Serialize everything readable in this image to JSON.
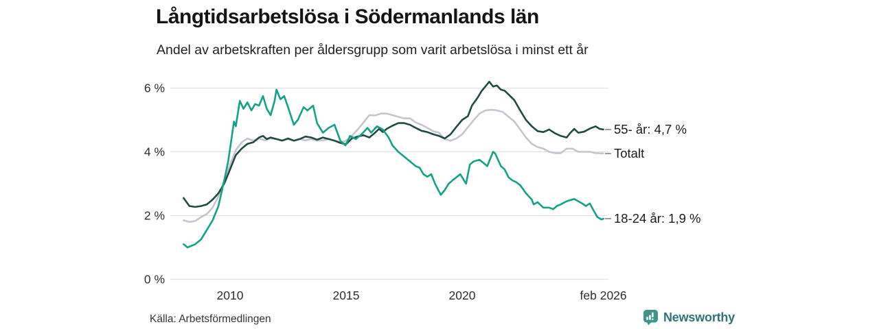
{
  "header": {
    "title": "Långtidsarbetslösa i Södermanlands län",
    "subtitle": "Andel av arbetskraften per åldersgrupp som varit arbetslösa i minst ett år"
  },
  "footer": {
    "source": "Källa: Arbetsförmedlingen",
    "brand": "Newsworthy"
  },
  "colors": {
    "grid": "#e2e2e6",
    "tick_text": "#2e2e2e",
    "annotation_text": "#1a1a1a",
    "connector_dash": "#9a9aa0",
    "brand_icon": "#3f948b",
    "brand_text": "#2e7478",
    "series_55": "#1f4a42",
    "series_total": "#c6c4ce",
    "series_18_24": "#12a189"
  },
  "chart_data": {
    "type": "line",
    "title": "Långtidsarbetslösa i Södermanlands län",
    "subtitle": "Andel av arbetskraften per åldersgrupp som varit arbetslösa i minst ett år",
    "unit": "% av arbetskraften",
    "grid": "horizontal",
    "legend_position": "right-end-labels",
    "x_axis": {
      "range": [
        2008.0,
        2026.083
      ],
      "ticks": [
        {
          "label": "2010",
          "x": 2010
        },
        {
          "label": "2015",
          "x": 2015
        },
        {
          "label": "2020",
          "x": 2020
        },
        {
          "label": "feb 2026",
          "x": 2026.083
        }
      ]
    },
    "y_axis": {
      "range": [
        0,
        6.6
      ],
      "ticks": [
        {
          "label": "0 %",
          "v": 0
        },
        {
          "label": "2 %",
          "v": 2
        },
        {
          "label": "4 %",
          "v": 4
        },
        {
          "label": "6 %",
          "v": 6
        }
      ]
    },
    "series": [
      {
        "name": "55- år",
        "end_label": "55- år: 4,7 %",
        "end_value": 4.7,
        "color": "#1f4a42",
        "draw_order": 2,
        "points": [
          [
            2008.0,
            2.55
          ],
          [
            2008.25,
            2.3
          ],
          [
            2008.5,
            2.27
          ],
          [
            2008.75,
            2.3
          ],
          [
            2009.0,
            2.35
          ],
          [
            2009.25,
            2.5
          ],
          [
            2009.5,
            2.7
          ],
          [
            2009.75,
            3.0
          ],
          [
            2010.0,
            3.45
          ],
          [
            2010.25,
            3.9
          ],
          [
            2010.5,
            4.1
          ],
          [
            2010.75,
            4.25
          ],
          [
            2011.0,
            4.3
          ],
          [
            2011.25,
            4.45
          ],
          [
            2011.42,
            4.5
          ],
          [
            2011.58,
            4.4
          ],
          [
            2011.75,
            4.45
          ],
          [
            2012.0,
            4.4
          ],
          [
            2012.25,
            4.35
          ],
          [
            2012.5,
            4.42
          ],
          [
            2012.75,
            4.35
          ],
          [
            2013.0,
            4.4
          ],
          [
            2013.25,
            4.48
          ],
          [
            2013.5,
            4.45
          ],
          [
            2013.75,
            4.38
          ],
          [
            2014.0,
            4.45
          ],
          [
            2014.25,
            4.4
          ],
          [
            2014.5,
            4.35
          ],
          [
            2014.75,
            4.28
          ],
          [
            2015.0,
            4.24
          ],
          [
            2015.25,
            4.42
          ],
          [
            2015.5,
            4.48
          ],
          [
            2015.75,
            4.52
          ],
          [
            2016.0,
            4.45
          ],
          [
            2016.25,
            4.6
          ],
          [
            2016.42,
            4.72
          ],
          [
            2016.58,
            4.62
          ],
          [
            2016.75,
            4.72
          ],
          [
            2017.0,
            4.82
          ],
          [
            2017.25,
            4.9
          ],
          [
            2017.5,
            4.9
          ],
          [
            2017.75,
            4.85
          ],
          [
            2018.0,
            4.75
          ],
          [
            2018.25,
            4.66
          ],
          [
            2018.5,
            4.62
          ],
          [
            2018.75,
            4.55
          ],
          [
            2019.0,
            4.5
          ],
          [
            2019.25,
            4.42
          ],
          [
            2019.5,
            4.55
          ],
          [
            2019.75,
            4.78
          ],
          [
            2020.0,
            5.0
          ],
          [
            2020.25,
            5.12
          ],
          [
            2020.42,
            5.45
          ],
          [
            2020.67,
            5.7
          ],
          [
            2020.83,
            5.9
          ],
          [
            2021.0,
            6.05
          ],
          [
            2021.17,
            6.2
          ],
          [
            2021.33,
            6.05
          ],
          [
            2021.5,
            6.08
          ],
          [
            2021.67,
            5.95
          ],
          [
            2021.83,
            5.92
          ],
          [
            2022.0,
            5.8
          ],
          [
            2022.25,
            5.62
          ],
          [
            2022.5,
            5.3
          ],
          [
            2022.75,
            5.0
          ],
          [
            2023.0,
            4.8
          ],
          [
            2023.25,
            4.65
          ],
          [
            2023.5,
            4.62
          ],
          [
            2023.75,
            4.7
          ],
          [
            2024.0,
            4.58
          ],
          [
            2024.25,
            4.5
          ],
          [
            2024.5,
            4.45
          ],
          [
            2024.67,
            4.6
          ],
          [
            2024.83,
            4.72
          ],
          [
            2025.0,
            4.6
          ],
          [
            2025.25,
            4.63
          ],
          [
            2025.5,
            4.73
          ],
          [
            2025.75,
            4.8
          ],
          [
            2025.92,
            4.72
          ],
          [
            2026.083,
            4.7
          ]
        ]
      },
      {
        "name": "Totalt",
        "end_label": "Totalt",
        "end_value": 3.95,
        "color": "#c6c4ce",
        "draw_order": 1,
        "points": [
          [
            2008.0,
            1.85
          ],
          [
            2008.25,
            1.8
          ],
          [
            2008.5,
            1.83
          ],
          [
            2008.75,
            1.95
          ],
          [
            2009.0,
            2.05
          ],
          [
            2009.25,
            2.25
          ],
          [
            2009.5,
            2.6
          ],
          [
            2009.75,
            3.1
          ],
          [
            2010.0,
            3.6
          ],
          [
            2010.25,
            4.05
          ],
          [
            2010.5,
            4.3
          ],
          [
            2010.75,
            4.42
          ],
          [
            2011.0,
            4.35
          ],
          [
            2011.25,
            4.42
          ],
          [
            2011.5,
            4.36
          ],
          [
            2011.75,
            4.42
          ],
          [
            2012.0,
            4.4
          ],
          [
            2012.25,
            4.36
          ],
          [
            2012.5,
            4.4
          ],
          [
            2012.75,
            4.35
          ],
          [
            2013.0,
            4.4
          ],
          [
            2013.25,
            4.36
          ],
          [
            2013.5,
            4.4
          ],
          [
            2013.75,
            4.35
          ],
          [
            2014.0,
            4.36
          ],
          [
            2014.25,
            4.4
          ],
          [
            2014.5,
            4.35
          ],
          [
            2014.75,
            4.3
          ],
          [
            2015.0,
            4.35
          ],
          [
            2015.25,
            4.5
          ],
          [
            2015.5,
            4.7
          ],
          [
            2015.75,
            4.92
          ],
          [
            2016.0,
            5.15
          ],
          [
            2016.25,
            5.14
          ],
          [
            2016.5,
            5.2
          ],
          [
            2016.75,
            5.2
          ],
          [
            2017.0,
            5.15
          ],
          [
            2017.25,
            5.1
          ],
          [
            2017.5,
            5.05
          ],
          [
            2017.75,
            5.05
          ],
          [
            2018.0,
            4.92
          ],
          [
            2018.25,
            4.85
          ],
          [
            2018.5,
            4.75
          ],
          [
            2018.75,
            4.65
          ],
          [
            2019.0,
            4.6
          ],
          [
            2019.25,
            4.4
          ],
          [
            2019.5,
            4.35
          ],
          [
            2019.75,
            4.42
          ],
          [
            2020.0,
            4.55
          ],
          [
            2020.25,
            4.77
          ],
          [
            2020.5,
            5.0
          ],
          [
            2020.75,
            5.2
          ],
          [
            2021.0,
            5.3
          ],
          [
            2021.25,
            5.32
          ],
          [
            2021.5,
            5.3
          ],
          [
            2021.75,
            5.25
          ],
          [
            2022.0,
            5.1
          ],
          [
            2022.25,
            4.95
          ],
          [
            2022.5,
            4.7
          ],
          [
            2022.75,
            4.45
          ],
          [
            2023.0,
            4.25
          ],
          [
            2023.25,
            4.15
          ],
          [
            2023.5,
            4.1
          ],
          [
            2023.75,
            4.0
          ],
          [
            2024.0,
            3.96
          ],
          [
            2024.25,
            3.96
          ],
          [
            2024.5,
            4.1
          ],
          [
            2024.75,
            4.1
          ],
          [
            2025.0,
            4.0
          ],
          [
            2025.25,
            4.0
          ],
          [
            2025.5,
            4.0
          ],
          [
            2025.75,
            3.96
          ],
          [
            2026.083,
            3.95
          ]
        ]
      },
      {
        "name": "18-24 år",
        "end_label": "18-24 år: 1,9 %",
        "end_value": 1.9,
        "color": "#12a189",
        "draw_order": 3,
        "points": [
          [
            2008.0,
            1.1
          ],
          [
            2008.17,
            1.0
          ],
          [
            2008.33,
            1.05
          ],
          [
            2008.5,
            1.1
          ],
          [
            2008.75,
            1.25
          ],
          [
            2009.0,
            1.55
          ],
          [
            2009.25,
            1.85
          ],
          [
            2009.5,
            2.3
          ],
          [
            2009.75,
            3.1
          ],
          [
            2009.92,
            3.7
          ],
          [
            2010.08,
            4.5
          ],
          [
            2010.17,
            4.95
          ],
          [
            2010.25,
            4.8
          ],
          [
            2010.42,
            5.6
          ],
          [
            2010.58,
            5.35
          ],
          [
            2010.75,
            5.55
          ],
          [
            2010.92,
            5.3
          ],
          [
            2011.08,
            5.5
          ],
          [
            2011.25,
            5.45
          ],
          [
            2011.42,
            5.75
          ],
          [
            2011.58,
            5.35
          ],
          [
            2011.75,
            5.15
          ],
          [
            2011.92,
            5.6
          ],
          [
            2012.0,
            5.95
          ],
          [
            2012.17,
            5.65
          ],
          [
            2012.33,
            5.75
          ],
          [
            2012.5,
            5.4
          ],
          [
            2012.75,
            4.85
          ],
          [
            2012.92,
            5.0
          ],
          [
            2013.17,
            5.4
          ],
          [
            2013.33,
            5.3
          ],
          [
            2013.58,
            5.45
          ],
          [
            2013.75,
            4.9
          ],
          [
            2014.0,
            4.6
          ],
          [
            2014.25,
            4.75
          ],
          [
            2014.5,
            4.85
          ],
          [
            2014.75,
            4.35
          ],
          [
            2014.97,
            4.2
          ],
          [
            2015.17,
            4.5
          ],
          [
            2015.42,
            4.4
          ],
          [
            2015.67,
            4.55
          ],
          [
            2015.92,
            4.75
          ],
          [
            2016.08,
            4.6
          ],
          [
            2016.33,
            4.8
          ],
          [
            2016.58,
            4.7
          ],
          [
            2016.83,
            4.45
          ],
          [
            2017.0,
            4.2
          ],
          [
            2017.25,
            4.0
          ],
          [
            2017.5,
            3.85
          ],
          [
            2017.75,
            3.7
          ],
          [
            2018.0,
            3.55
          ],
          [
            2018.17,
            3.5
          ],
          [
            2018.33,
            3.3
          ],
          [
            2018.5,
            3.22
          ],
          [
            2018.67,
            3.3
          ],
          [
            2018.83,
            3.0
          ],
          [
            2019.08,
            2.65
          ],
          [
            2019.25,
            2.8
          ],
          [
            2019.42,
            3.0
          ],
          [
            2019.58,
            3.1
          ],
          [
            2019.75,
            3.2
          ],
          [
            2019.92,
            3.3
          ],
          [
            2020.08,
            3.1
          ],
          [
            2020.17,
            3.0
          ],
          [
            2020.33,
            3.6
          ],
          [
            2020.5,
            3.7
          ],
          [
            2020.75,
            3.75
          ],
          [
            2020.92,
            3.65
          ],
          [
            2021.08,
            3.55
          ],
          [
            2021.33,
            4.0
          ],
          [
            2021.42,
            3.95
          ],
          [
            2021.67,
            3.55
          ],
          [
            2021.83,
            3.45
          ],
          [
            2022.0,
            3.2
          ],
          [
            2022.17,
            3.1
          ],
          [
            2022.33,
            3.05
          ],
          [
            2022.5,
            2.95
          ],
          [
            2022.75,
            2.7
          ],
          [
            2023.0,
            2.5
          ],
          [
            2023.08,
            2.35
          ],
          [
            2023.25,
            2.42
          ],
          [
            2023.5,
            2.25
          ],
          [
            2023.75,
            2.25
          ],
          [
            2023.92,
            2.2
          ],
          [
            2024.08,
            2.3
          ],
          [
            2024.25,
            2.35
          ],
          [
            2024.5,
            2.45
          ],
          [
            2024.83,
            2.52
          ],
          [
            2025.0,
            2.45
          ],
          [
            2025.17,
            2.38
          ],
          [
            2025.33,
            2.3
          ],
          [
            2025.5,
            2.38
          ],
          [
            2025.67,
            2.15
          ],
          [
            2025.83,
            1.95
          ],
          [
            2026.0,
            1.88
          ],
          [
            2026.083,
            1.9
          ]
        ]
      }
    ]
  }
}
